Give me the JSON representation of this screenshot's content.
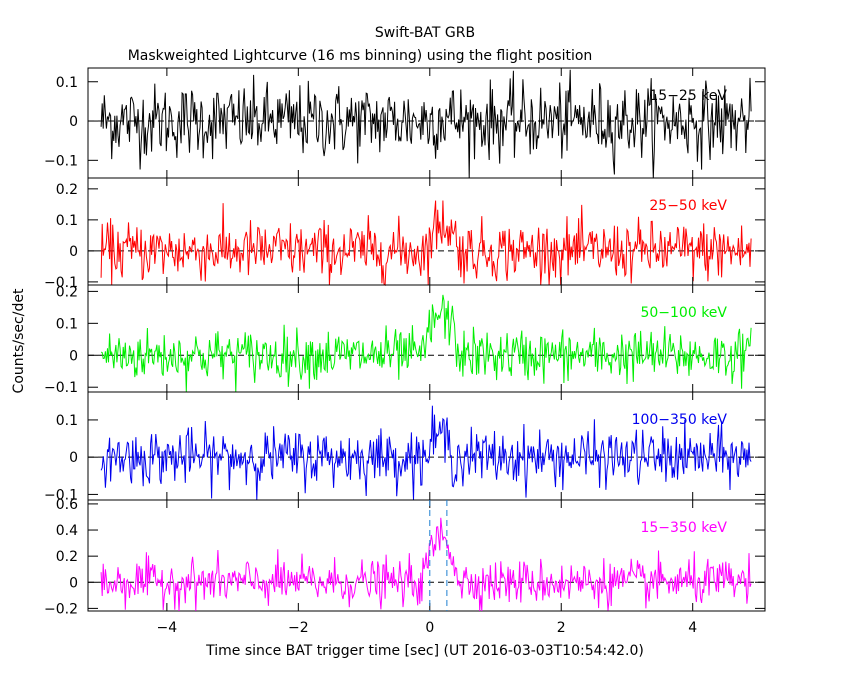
{
  "chart_data": {
    "type": "line",
    "title": "Swift-BAT GRB",
    "subtitle": "Maskweighted Lightcurve (16 ms binning) using the flight position",
    "xlabel": "Time since BAT trigger time [sec] (UT 2016-03-03T10:54:42.0)",
    "ylabel": "Counts/sec/det",
    "xlim": [
      -5.2,
      5.1
    ],
    "x_ticks": [
      -4,
      -2,
      0,
      2,
      4
    ],
    "x_tick_labels": [
      "−4",
      "−2",
      "0",
      "2",
      "4"
    ],
    "bin_width_sec": 0.016,
    "data_range_x": [
      -5.0,
      4.9
    ],
    "vertical_markers": [
      {
        "x": 0.0,
        "color": "#1f7fd0",
        "style": "dashed"
      },
      {
        "x": 0.26,
        "color": "#1f7fd0",
        "style": "dashed"
      }
    ],
    "panels": [
      {
        "name": "15-25 keV",
        "label": "15−25 keV",
        "color": "#000000",
        "ylim": [
          -0.145,
          0.135
        ],
        "y_ticks": [
          -0.1,
          0,
          0.1
        ],
        "y_tick_labels": [
          "−0.1",
          "0",
          "0.1"
        ],
        "noise_sigma": 0.047,
        "peak": 0.01,
        "pulse_start": 0.0,
        "pulse_end": 0.45
      },
      {
        "name": "25-50 keV",
        "label": "25−50 keV",
        "color": "#ff0000",
        "ylim": [
          -0.11,
          0.235
        ],
        "y_ticks": [
          -0.1,
          0,
          0.1,
          0.2
        ],
        "y_tick_labels": [
          "−0.1",
          "0",
          "0.1",
          "0.2"
        ],
        "noise_sigma": 0.047,
        "peak": 0.09,
        "pulse_start": -0.05,
        "pulse_end": 0.45
      },
      {
        "name": "50-100 keV",
        "label": "50−100 keV",
        "color": "#00ee00",
        "ylim": [
          -0.115,
          0.22
        ],
        "y_ticks": [
          -0.1,
          0,
          0.1,
          0.2
        ],
        "y_tick_labels": [
          "−0.1",
          "0",
          "0.1",
          "0.2"
        ],
        "noise_sigma": 0.04,
        "peak": 0.13,
        "pulse_start": -0.1,
        "pulse_end": 0.45
      },
      {
        "name": "100-350 keV",
        "label": "100−350 keV",
        "color": "#0000ee",
        "ylim": [
          -0.115,
          0.175
        ],
        "y_ticks": [
          -0.1,
          0,
          0.1
        ],
        "y_tick_labels": [
          "−0.1",
          "0",
          "0.1"
        ],
        "noise_sigma": 0.037,
        "peak": 0.06,
        "pulse_start": -0.05,
        "pulse_end": 0.35
      },
      {
        "name": "15-350 keV",
        "label": "15−350 keV",
        "color": "#ff00ff",
        "ylim": [
          -0.22,
          0.63
        ],
        "y_ticks": [
          -0.2,
          0,
          0.2,
          0.4,
          0.6
        ],
        "y_tick_labels": [
          "−0.2",
          "0",
          "0.2",
          "0.4",
          "0.6"
        ],
        "noise_sigma": 0.085,
        "peak": 0.35,
        "pulse_start": -0.1,
        "pulse_end": 0.45
      }
    ]
  }
}
